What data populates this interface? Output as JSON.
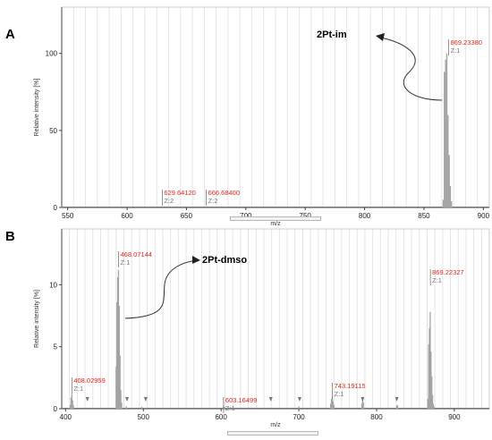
{
  "chart_data": [
    {
      "type": "bar",
      "panel": "A",
      "xlabel": "m/z",
      "ylabel": "Relative intensity [%]",
      "xlim": [
        545,
        905
      ],
      "ylim": [
        0,
        130
      ],
      "x_ticks": [
        550,
        600,
        650,
        700,
        750,
        800,
        850,
        900
      ],
      "y_ticks": [
        0,
        50,
        100
      ],
      "grid": "vertical",
      "annotation": "2Pt-im",
      "labeled_peaks": [
        {
          "mz": 629.6412,
          "label": "629.64120",
          "charge": "Z:2",
          "intensity": 6
        },
        {
          "mz": 666.684,
          "label": "666.68400",
          "charge": "Z:2",
          "intensity": 6
        },
        {
          "mz": 869.2338,
          "label": "869.23380",
          "charge": "Z:1",
          "intensity": 100
        }
      ],
      "series": [
        {
          "values": [
            [
              866.2,
              5
            ],
            [
              867.2,
              88
            ],
            [
              868.2,
              96
            ],
            [
              869.2,
              100
            ],
            [
              870.2,
              60
            ],
            [
              871.2,
              34
            ],
            [
              872.2,
              14
            ],
            [
              873.2,
              4
            ]
          ]
        }
      ]
    },
    {
      "type": "bar",
      "panel": "B",
      "xlabel": "m/z",
      "ylabel": "Relative intensity [%]",
      "xlim": [
        395,
        945
      ],
      "ylim": [
        0,
        14.5
      ],
      "x_ticks": [
        400,
        500,
        600,
        700,
        800,
        900
      ],
      "y_ticks": [
        0,
        5,
        10
      ],
      "grid": "vertical",
      "annotation": "2Pt-dmso",
      "labeled_peaks": [
        {
          "mz": 408.02959,
          "label": "408.02959",
          "charge": "Z:1",
          "intensity": 1.2
        },
        {
          "mz": 468.07144,
          "label": "468.07144",
          "charge": "Z:1",
          "intensity": 11.2
        },
        {
          "mz": 603.16499,
          "label": "603.16499",
          "charge": "Z:1",
          "intensity": 0.2
        },
        {
          "mz": 743.19115,
          "label": "743.19115",
          "charge": "Z:1",
          "intensity": 1.0
        },
        {
          "mz": 869.22327,
          "label": "869.22327",
          "charge": "Z:1",
          "intensity": 7.8
        }
      ],
      "series": [
        {
          "values": [
            [
              406,
              0.3
            ],
            [
              407,
              0.9
            ],
            [
              408,
              1.2
            ],
            [
              409,
              0.7
            ],
            [
              410,
              0.3
            ],
            [
              465,
              3.4
            ],
            [
              466,
              8.6
            ],
            [
              467,
              10.6
            ],
            [
              468,
              11.2
            ],
            [
              469,
              8.3
            ],
            [
              470,
              4.3
            ],
            [
              471,
              1.5
            ],
            [
              472,
              0.5
            ],
            [
              478,
              0.2
            ],
            [
              498,
              0.15
            ],
            [
              603,
              0.2
            ],
            [
              604,
              0.15
            ],
            [
              700,
              0.2
            ],
            [
              741,
              0.4
            ],
            [
              742,
              0.8
            ],
            [
              743,
              1.0
            ],
            [
              744,
              0.6
            ],
            [
              745,
              0.3
            ],
            [
              781,
              0.4
            ],
            [
              782,
              0.7
            ],
            [
              783,
              0.5
            ],
            [
              826,
              0.25
            ],
            [
              827,
              0.3
            ],
            [
              866,
              0.8
            ],
            [
              867,
              5.2
            ],
            [
              868,
              6.5
            ],
            [
              869,
              7.8
            ],
            [
              870,
              4.6
            ],
            [
              871,
              2.6
            ],
            [
              872,
              1.1
            ],
            [
              873,
              0.4
            ],
            [
              874,
              0.15
            ]
          ]
        }
      ],
      "markers_mz": [
        428,
        479,
        503,
        664,
        701,
        782,
        826
      ]
    }
  ]
}
